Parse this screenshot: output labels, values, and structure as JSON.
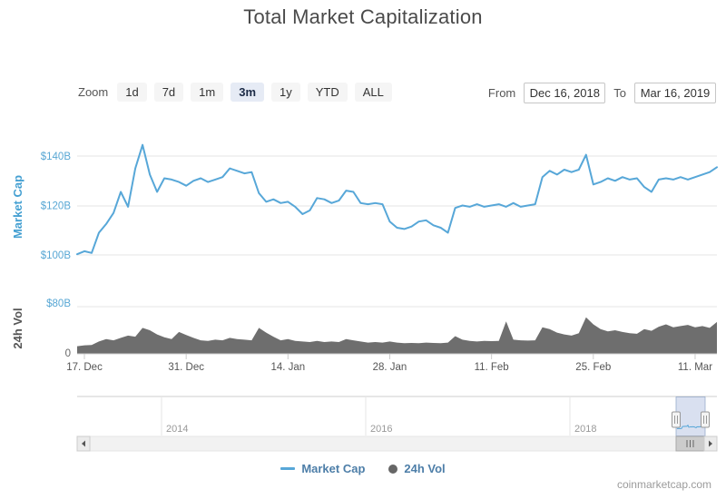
{
  "title": "Total Market Capitalization",
  "controls": {
    "zoom_label": "Zoom",
    "zoom_options": [
      "1d",
      "7d",
      "1m",
      "3m",
      "1y",
      "YTD",
      "ALL"
    ],
    "zoom_selected": "3m",
    "from_label": "From",
    "from_value": "Dec 16, 2018",
    "to_label": "To",
    "to_value": "Mar 16, 2019"
  },
  "chart_data": [
    {
      "type": "line",
      "name": "Market Cap",
      "ylabel": "Market Cap",
      "unit": "USD billions",
      "yticks": [
        "$100B",
        "$120B",
        "$140B"
      ],
      "ylim": [
        95,
        150
      ],
      "x_start": "Dec 16, 2018",
      "x_end": "Mar 14, 2019",
      "xticklabels": [
        "17. Dec",
        "31. Dec",
        "14. Jan",
        "28. Jan",
        "11. Feb",
        "25. Feb",
        "11. Mar"
      ],
      "x_tick_days": [
        1,
        15,
        29,
        43,
        57,
        71,
        85
      ],
      "grid": true,
      "values": [
        100.3,
        101.5,
        100.8,
        109,
        112.5,
        117,
        125.5,
        119.5,
        135,
        144.5,
        132.5,
        125.5,
        131,
        130.5,
        129.5,
        128,
        130,
        131,
        129.5,
        130.5,
        131.5,
        135,
        134,
        133,
        133.5,
        125,
        121.5,
        122.5,
        121,
        121.5,
        119.5,
        116.5,
        118,
        123,
        122.5,
        121,
        122,
        126,
        125.5,
        121,
        120.5,
        121,
        120.5,
        113.5,
        111,
        110.5,
        111.5,
        113.5,
        114,
        112,
        111,
        109,
        119,
        120,
        119.5,
        120.5,
        119.5,
        120,
        120.5,
        119.5,
        121,
        119.5,
        120,
        120.5,
        131.5,
        134,
        132.5,
        134.5,
        133.5,
        134.5,
        140.5,
        128.5,
        129.5,
        131,
        130,
        131.5,
        130.5,
        131,
        127.5,
        125.5,
        130.5,
        131,
        130.5,
        131.5,
        130.5,
        131.5,
        132.5,
        133.5,
        135.5
      ]
    },
    {
      "type": "area",
      "name": "24h Vol",
      "ylabel": "24h Vol",
      "unit": "USD billions",
      "yticks": [
        "0",
        "$80B"
      ],
      "ylim": [
        0,
        80
      ],
      "grid": true,
      "values": [
        13,
        14.5,
        15,
        21,
        25,
        23,
        27,
        31,
        29,
        44,
        40,
        33,
        28,
        25,
        37,
        32,
        27,
        23,
        22,
        24,
        23,
        27,
        25,
        24,
        23,
        44,
        36,
        29,
        23,
        25,
        22,
        21,
        20,
        22,
        20,
        21,
        20,
        25,
        23,
        21,
        19,
        20,
        19,
        21,
        19,
        18,
        18.5,
        18,
        19,
        18.5,
        18,
        19,
        30,
        24,
        22,
        21,
        22,
        21.5,
        22,
        55,
        24,
        23,
        22.5,
        23,
        45,
        42,
        36,
        33,
        31,
        35,
        62,
        50,
        42,
        38,
        40,
        37,
        35,
        34,
        42,
        39,
        46,
        50,
        45,
        47,
        49,
        45,
        47,
        44,
        54
      ]
    }
  ],
  "navigator": {
    "year_labels": [
      "2014",
      "2016",
      "2018"
    ]
  },
  "legend": {
    "items": [
      {
        "label": "Market Cap",
        "marker": "line",
        "color": "#57a7d8"
      },
      {
        "label": "24h Vol",
        "marker": "dot",
        "color": "#666666"
      }
    ]
  },
  "watermark": "coinmarketcap.com",
  "colors": {
    "line_series": "#57a7d8",
    "volume_fill": "#6e6e6e",
    "blue_axis_text": "#58a7d4",
    "gridline": "#e6e6e6",
    "selected_button_bg": "#e6ebf5"
  }
}
